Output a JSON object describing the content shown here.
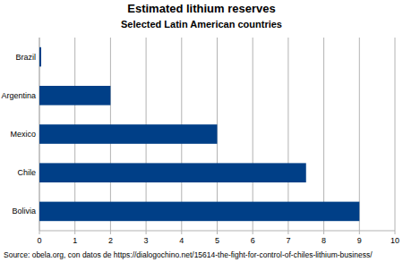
{
  "chart_data": {
    "type": "bar",
    "title": "Estimated lithium reserves",
    "subtitle": "Selected Latin American countries",
    "categories": [
      "Brazil",
      "Argentina",
      "Mexico",
      "Chile",
      "Bolivia"
    ],
    "values": [
      0.05,
      2,
      5,
      7.5,
      9
    ],
    "color": "#003f87",
    "orientation": "horizontal",
    "xlim": [
      0,
      10
    ],
    "xticks": [
      0,
      1,
      2,
      3,
      4,
      5,
      6,
      7,
      8,
      9,
      10
    ],
    "grid": true,
    "source": "Source: obela.org, con datos de https://dialogochino.net/15614-the-fight-for-control-of-chiles-lithium-business/"
  }
}
